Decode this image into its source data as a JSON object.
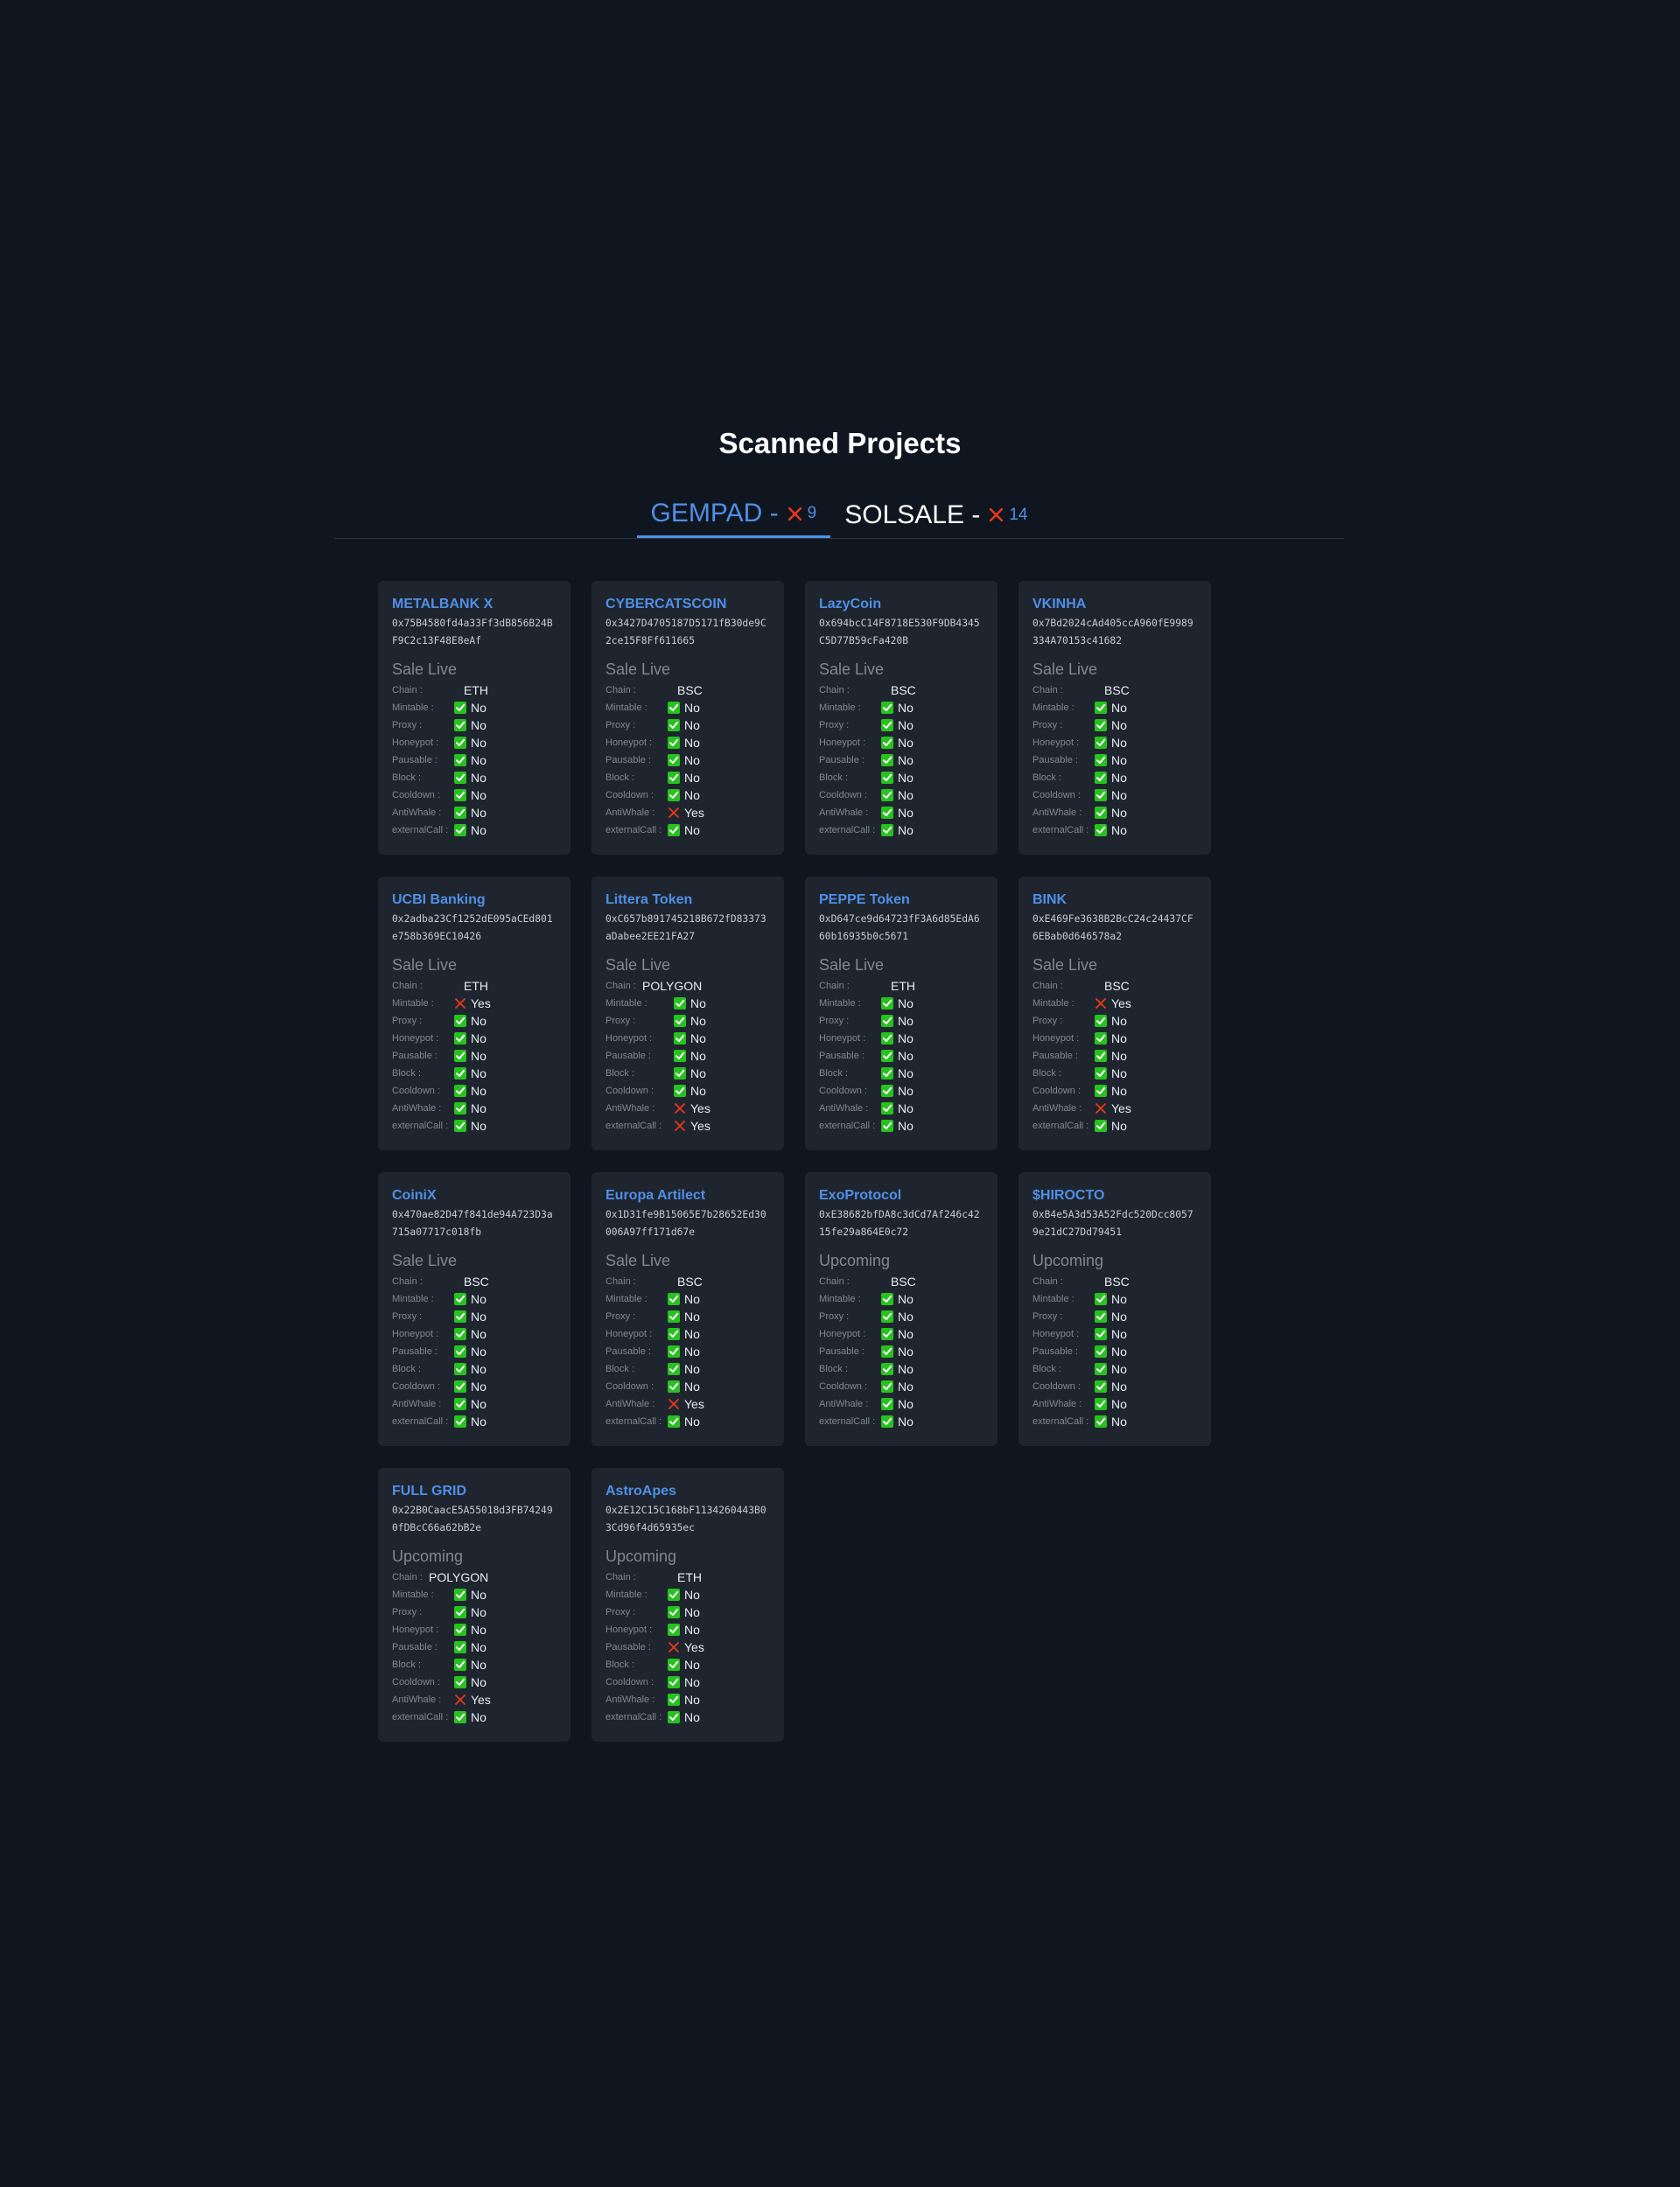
{
  "page": {
    "title": "Scanned Projects"
  },
  "tabs": [
    {
      "label": "GEMPAD -",
      "count": "9",
      "active": true
    },
    {
      "label": "SOLSALE -",
      "count": "14",
      "active": false
    }
  ],
  "field_labels": {
    "chain": "Chain :",
    "mintable": "Mintable :",
    "proxy": "Proxy :",
    "honeypot": "Honeypot :",
    "pausable": "Pausable :",
    "block": "Block :",
    "cooldown": "Cooldown :",
    "antiwhale": "AntiWhale :",
    "externalcall": "externalCall :"
  },
  "colors": {
    "accent": "#4f8fe8",
    "ok": "#27c21f",
    "fail": "#e8371f",
    "card": "#1f252e",
    "background": "#10161f"
  },
  "projects": [
    {
      "name": "METALBANK X",
      "address": "0x75B4580fd4a33Ff3dB856B24BF9C2c13F48E8eAf",
      "status": "Sale Live",
      "chain": "ETH",
      "mintable": "No",
      "proxy": "No",
      "honeypot": "No",
      "pausable": "No",
      "block": "No",
      "cooldown": "No",
      "antiwhale": "No",
      "externalcall": "No"
    },
    {
      "name": "CYBERCATSCOIN",
      "address": "0x3427D4705187D5171fB30de9C2ce15F8Ff611665",
      "status": "Sale Live",
      "chain": "BSC",
      "mintable": "No",
      "proxy": "No",
      "honeypot": "No",
      "pausable": "No",
      "block": "No",
      "cooldown": "No",
      "antiwhale": "Yes",
      "externalcall": "No"
    },
    {
      "name": "LazyCoin",
      "address": "0x694bcC14F8718E530F9DB4345C5D77B59cFa420B",
      "status": "Sale Live",
      "chain": "BSC",
      "mintable": "No",
      "proxy": "No",
      "honeypot": "No",
      "pausable": "No",
      "block": "No",
      "cooldown": "No",
      "antiwhale": "No",
      "externalcall": "No"
    },
    {
      "name": "VKINHA",
      "address": "0x7Bd2024cAd405ccA960fE9989334A70153c41682",
      "status": "Sale Live",
      "chain": "BSC",
      "mintable": "No",
      "proxy": "No",
      "honeypot": "No",
      "pausable": "No",
      "block": "No",
      "cooldown": "No",
      "antiwhale": "No",
      "externalcall": "No"
    },
    {
      "name": "UCBI Banking",
      "address": "0x2adba23Cf1252dE095aCEd801e758b369EC10426",
      "status": "Sale Live",
      "chain": "ETH",
      "mintable": "Yes",
      "proxy": "No",
      "honeypot": "No",
      "pausable": "No",
      "block": "No",
      "cooldown": "No",
      "antiwhale": "No",
      "externalcall": "No"
    },
    {
      "name": "Littera Token",
      "address": "0xC657b891745218B672fD83373aDabee2EE21FA27",
      "status": "Sale Live",
      "chain": "POLYGON",
      "mintable": "No",
      "proxy": "No",
      "honeypot": "No",
      "pausable": "No",
      "block": "No",
      "cooldown": "No",
      "antiwhale": "Yes",
      "externalcall": "Yes"
    },
    {
      "name": "PEPPE Token",
      "address": "0xD647ce9d64723fF3A6d85EdA660b16935b0c5671",
      "status": "Sale Live",
      "chain": "ETH",
      "mintable": "No",
      "proxy": "No",
      "honeypot": "No",
      "pausable": "No",
      "block": "No",
      "cooldown": "No",
      "antiwhale": "No",
      "externalcall": "No"
    },
    {
      "name": "BINK",
      "address": "0xE469Fe3638B2BcC24c24437CF6EBab0d646578a2",
      "status": "Sale Live",
      "chain": "BSC",
      "mintable": "Yes",
      "proxy": "No",
      "honeypot": "No",
      "pausable": "No",
      "block": "No",
      "cooldown": "No",
      "antiwhale": "Yes",
      "externalcall": "No"
    },
    {
      "name": "CoiniX",
      "address": "0x470ae82D47f841de94A723D3a715a07717c018fb",
      "status": "Sale Live",
      "chain": "BSC",
      "mintable": "No",
      "proxy": "No",
      "honeypot": "No",
      "pausable": "No",
      "block": "No",
      "cooldown": "No",
      "antiwhale": "No",
      "externalcall": "No"
    },
    {
      "name": "Europa Artilect",
      "address": "0x1D31fe9B15065E7b28652Ed30006A97ff171d67e",
      "status": "Sale Live",
      "chain": "BSC",
      "mintable": "No",
      "proxy": "No",
      "honeypot": "No",
      "pausable": "No",
      "block": "No",
      "cooldown": "No",
      "antiwhale": "Yes",
      "externalcall": "No"
    },
    {
      "name": "ExoProtocol",
      "address": "0xE38682bfDA8c3dCd7Af246c4215fe29a864E0c72",
      "status": "Upcoming",
      "chain": "BSC",
      "mintable": "No",
      "proxy": "No",
      "honeypot": "No",
      "pausable": "No",
      "block": "No",
      "cooldown": "No",
      "antiwhale": "No",
      "externalcall": "No"
    },
    {
      "name": "$HIROCTO",
      "address": "0xB4e5A3d53A52Fdc520Dcc80579e21dC27Dd79451",
      "status": "Upcoming",
      "chain": "BSC",
      "mintable": "No",
      "proxy": "No",
      "honeypot": "No",
      "pausable": "No",
      "block": "No",
      "cooldown": "No",
      "antiwhale": "No",
      "externalcall": "No"
    },
    {
      "name": "FULL GRID",
      "address": "0x22B0CaacE5A55018d3FB742490fDBcC66a62bB2e",
      "status": "Upcoming",
      "chain": "POLYGON",
      "mintable": "No",
      "proxy": "No",
      "honeypot": "No",
      "pausable": "No",
      "block": "No",
      "cooldown": "No",
      "antiwhale": "Yes",
      "externalcall": "No"
    },
    {
      "name": "AstroApes",
      "address": "0x2E12C15C168bF1134260443B03Cd96f4d65935ec",
      "status": "Upcoming",
      "chain": "ETH",
      "mintable": "No",
      "proxy": "No",
      "honeypot": "No",
      "pausable": "Yes",
      "block": "No",
      "cooldown": "No",
      "antiwhale": "No",
      "externalcall": "No"
    }
  ]
}
